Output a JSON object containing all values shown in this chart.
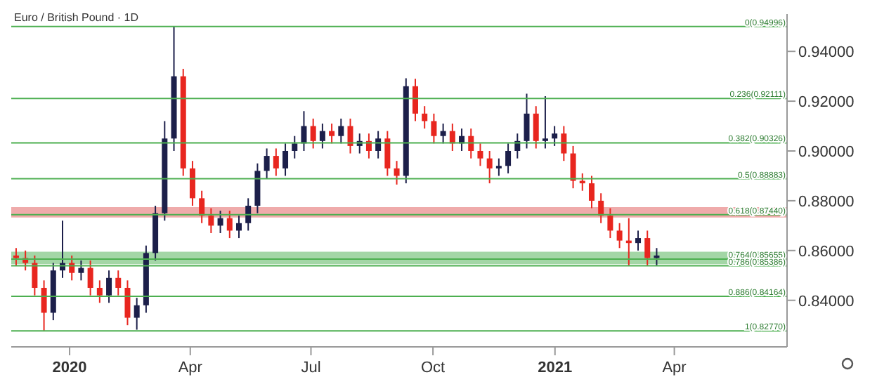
{
  "chart_data": {
    "type": "candlestick",
    "title": "Euro / British Pound · 1D",
    "x": [
      "2019-11-22",
      "2019-11-29",
      "2019-12-06",
      "2019-12-13",
      "2019-12-20",
      "2019-12-27",
      "2020-01-03",
      "2020-01-10",
      "2020-01-17",
      "2020-01-24",
      "2020-01-31",
      "2020-02-07",
      "2020-02-14",
      "2020-02-21",
      "2020-02-28",
      "2020-03-06",
      "2020-03-13",
      "2020-03-20",
      "2020-03-27",
      "2020-04-03",
      "2020-04-10",
      "2020-04-17",
      "2020-04-24",
      "2020-05-01",
      "2020-05-08",
      "2020-05-15",
      "2020-05-22",
      "2020-05-29",
      "2020-06-05",
      "2020-06-12",
      "2020-06-19",
      "2020-06-26",
      "2020-07-03",
      "2020-07-10",
      "2020-07-17",
      "2020-07-24",
      "2020-07-31",
      "2020-08-07",
      "2020-08-14",
      "2020-08-21",
      "2020-08-28",
      "2020-09-04",
      "2020-09-11",
      "2020-09-18",
      "2020-09-25",
      "2020-10-02",
      "2020-10-09",
      "2020-10-16",
      "2020-10-23",
      "2020-10-30",
      "2020-11-06",
      "2020-11-13",
      "2020-11-20",
      "2020-11-27",
      "2020-12-04",
      "2020-12-11",
      "2020-12-18",
      "2020-12-25",
      "2021-01-01",
      "2021-01-08",
      "2021-01-15",
      "2021-01-22",
      "2021-01-29",
      "2021-02-05",
      "2021-02-12",
      "2021-02-19",
      "2021-02-26",
      "2021-03-05",
      "2021-03-12",
      "2021-03-19"
    ],
    "ohlc": [
      [
        0.858,
        0.861,
        0.854,
        0.857
      ],
      [
        0.857,
        0.86,
        0.852,
        0.855
      ],
      [
        0.855,
        0.858,
        0.842,
        0.845
      ],
      [
        0.845,
        0.848,
        0.8278,
        0.835
      ],
      [
        0.835,
        0.855,
        0.832,
        0.852
      ],
      [
        0.852,
        0.872,
        0.849,
        0.855
      ],
      [
        0.855,
        0.858,
        0.848,
        0.851
      ],
      [
        0.851,
        0.856,
        0.848,
        0.853
      ],
      [
        0.853,
        0.856,
        0.842,
        0.845
      ],
      [
        0.845,
        0.848,
        0.839,
        0.842
      ],
      [
        0.842,
        0.852,
        0.839,
        0.849
      ],
      [
        0.849,
        0.852,
        0.842,
        0.845
      ],
      [
        0.845,
        0.848,
        0.83,
        0.833
      ],
      [
        0.833,
        0.841,
        0.8282,
        0.838
      ],
      [
        0.838,
        0.862,
        0.835,
        0.859
      ],
      [
        0.859,
        0.878,
        0.856,
        0.875
      ],
      [
        0.875,
        0.912,
        0.872,
        0.905
      ],
      [
        0.905,
        0.9499,
        0.9,
        0.93
      ],
      [
        0.93,
        0.933,
        0.89,
        0.893
      ],
      [
        0.893,
        0.896,
        0.878,
        0.881
      ],
      [
        0.881,
        0.884,
        0.871,
        0.874
      ],
      [
        0.874,
        0.877,
        0.867,
        0.87
      ],
      [
        0.87,
        0.876,
        0.867,
        0.873
      ],
      [
        0.873,
        0.876,
        0.865,
        0.868
      ],
      [
        0.868,
        0.874,
        0.865,
        0.871
      ],
      [
        0.871,
        0.881,
        0.868,
        0.878
      ],
      [
        0.878,
        0.895,
        0.875,
        0.892
      ],
      [
        0.892,
        0.901,
        0.889,
        0.898
      ],
      [
        0.898,
        0.901,
        0.89,
        0.893
      ],
      [
        0.893,
        0.903,
        0.89,
        0.9
      ],
      [
        0.9,
        0.906,
        0.897,
        0.903
      ],
      [
        0.903,
        0.916,
        0.9,
        0.91
      ],
      [
        0.91,
        0.913,
        0.901,
        0.904
      ],
      [
        0.904,
        0.911,
        0.901,
        0.908
      ],
      [
        0.908,
        0.911,
        0.903,
        0.906
      ],
      [
        0.906,
        0.913,
        0.903,
        0.91
      ],
      [
        0.91,
        0.913,
        0.899,
        0.902
      ],
      [
        0.902,
        0.907,
        0.899,
        0.904
      ],
      [
        0.904,
        0.907,
        0.897,
        0.9
      ],
      [
        0.9,
        0.908,
        0.897,
        0.905
      ],
      [
        0.905,
        0.908,
        0.89,
        0.893
      ],
      [
        0.893,
        0.896,
        0.8865,
        0.89
      ],
      [
        0.89,
        0.9292,
        0.887,
        0.926
      ],
      [
        0.926,
        0.929,
        0.912,
        0.915
      ],
      [
        0.915,
        0.918,
        0.909,
        0.912
      ],
      [
        0.912,
        0.915,
        0.903,
        0.906
      ],
      [
        0.906,
        0.911,
        0.903,
        0.908
      ],
      [
        0.908,
        0.911,
        0.9,
        0.903
      ],
      [
        0.903,
        0.909,
        0.9,
        0.906
      ],
      [
        0.906,
        0.909,
        0.897,
        0.9
      ],
      [
        0.9,
        0.903,
        0.894,
        0.897
      ],
      [
        0.897,
        0.9,
        0.887,
        0.893
      ],
      [
        0.893,
        0.897,
        0.89,
        0.894
      ],
      [
        0.894,
        0.903,
        0.891,
        0.9
      ],
      [
        0.9,
        0.907,
        0.897,
        0.904
      ],
      [
        0.904,
        0.923,
        0.901,
        0.915
      ],
      [
        0.915,
        0.918,
        0.901,
        0.904
      ],
      [
        0.904,
        0.922,
        0.901,
        0.905
      ],
      [
        0.905,
        0.91,
        0.902,
        0.907
      ],
      [
        0.907,
        0.91,
        0.896,
        0.899
      ],
      [
        0.899,
        0.902,
        0.885,
        0.888
      ],
      [
        0.888,
        0.891,
        0.884,
        0.887
      ],
      [
        0.887,
        0.89,
        0.877,
        0.88
      ],
      [
        0.88,
        0.883,
        0.871,
        0.874
      ],
      [
        0.874,
        0.877,
        0.865,
        0.868
      ],
      [
        0.868,
        0.871,
        0.861,
        0.864
      ],
      [
        0.864,
        0.873,
        0.854,
        0.863
      ],
      [
        0.863,
        0.868,
        0.86,
        0.865
      ],
      [
        0.865,
        0.868,
        0.854,
        0.857
      ],
      [
        0.857,
        0.861,
        0.854,
        0.858
      ]
    ],
    "colors": [
      "#e8261f",
      "#e8261f",
      "#e8261f",
      "#e8261f",
      "#1c1f4a",
      "#1c1f4a",
      "#e8261f",
      "#1c1f4a",
      "#e8261f",
      "#e8261f",
      "#1c1f4a",
      "#e8261f",
      "#e8261f",
      "#1c1f4a",
      "#1c1f4a",
      "#1c1f4a",
      "#1c1f4a",
      "#1c1f4a",
      "#e8261f",
      "#e8261f",
      "#e8261f",
      "#e8261f",
      "#1c1f4a",
      "#e8261f",
      "#1c1f4a",
      "#1c1f4a",
      "#1c1f4a",
      "#1c1f4a",
      "#e8261f",
      "#1c1f4a",
      "#1c1f4a",
      "#1c1f4a",
      "#e8261f",
      "#1c1f4a",
      "#e8261f",
      "#1c1f4a",
      "#e8261f",
      "#1c1f4a",
      "#e8261f",
      "#1c1f4a",
      "#e8261f",
      "#e8261f",
      "#1c1f4a",
      "#e8261f",
      "#e8261f",
      "#e8261f",
      "#1c1f4a",
      "#e8261f",
      "#1c1f4a",
      "#e8261f",
      "#e8261f",
      "#e8261f",
      "#1c1f4a",
      "#1c1f4a",
      "#1c1f4a",
      "#1c1f4a",
      "#e8261f",
      "#1c1f4a",
      "#1c1f4a",
      "#e8261f",
      "#e8261f",
      "#e8261f",
      "#e8261f",
      "#e8261f",
      "#e8261f",
      "#e8261f",
      "#e8261f",
      "#1c1f4a",
      "#e8261f",
      "#1c1f4a"
    ],
    "xlim": [
      "2019-11-18",
      "2021-06-25"
    ],
    "xticks": [
      {
        "value": "2020-01-01",
        "label": "2020"
      },
      {
        "value": "2020-04-01",
        "label": "Apr"
      },
      {
        "value": "2020-07-01",
        "label": "Jul"
      },
      {
        "value": "2020-10-01",
        "label": "Oct"
      },
      {
        "value": "2021-01-01",
        "label": "2021"
      },
      {
        "value": "2021-04-01",
        "label": "Apr"
      }
    ],
    "ylim": [
      0.8213,
      0.955
    ],
    "yticks": [
      {
        "value": 0.84,
        "label": "0.84000"
      },
      {
        "value": 0.86,
        "label": "0.86000"
      },
      {
        "value": 0.88,
        "label": "0.88000"
      },
      {
        "value": 0.9,
        "label": "0.90000"
      },
      {
        "value": 0.92,
        "label": "0.92000"
      },
      {
        "value": 0.94,
        "label": "0.94000"
      }
    ],
    "ref_lines": [
      {
        "axis": "y",
        "value": 0.94996,
        "label": "0(0.94996)",
        "color": "#4caf50"
      },
      {
        "axis": "y",
        "value": 0.92111,
        "label": "0.236(0.92111)",
        "color": "#4caf50"
      },
      {
        "axis": "y",
        "value": 0.90326,
        "label": "0.382(0.90326)",
        "color": "#4caf50"
      },
      {
        "axis": "y",
        "value": 0.88883,
        "label": "0.5(0.88883)",
        "color": "#4caf50"
      },
      {
        "axis": "y",
        "value": 0.8744,
        "label": "0.618(0.87440)",
        "color": "#4caf50"
      },
      {
        "axis": "y",
        "value": 0.85655,
        "label": "0.764(0.85655)",
        "color": "#4caf50"
      },
      {
        "axis": "y",
        "value": 0.85386,
        "label": "0.786(0.85386)",
        "color": "#4caf50"
      },
      {
        "axis": "y",
        "value": 0.84164,
        "label": "0.886(0.84164)",
        "color": "#4caf50"
      },
      {
        "axis": "y",
        "value": 0.8277,
        "label": "1(0.82770)",
        "color": "#4caf50"
      }
    ],
    "bands": [
      {
        "axis": "y",
        "from": 0.8545,
        "to": 0.8595,
        "color": "#66bb6a"
      },
      {
        "axis": "y",
        "from": 0.8733,
        "to": 0.8774,
        "color": "#e57373"
      }
    ],
    "grid": false,
    "legend": false
  }
}
